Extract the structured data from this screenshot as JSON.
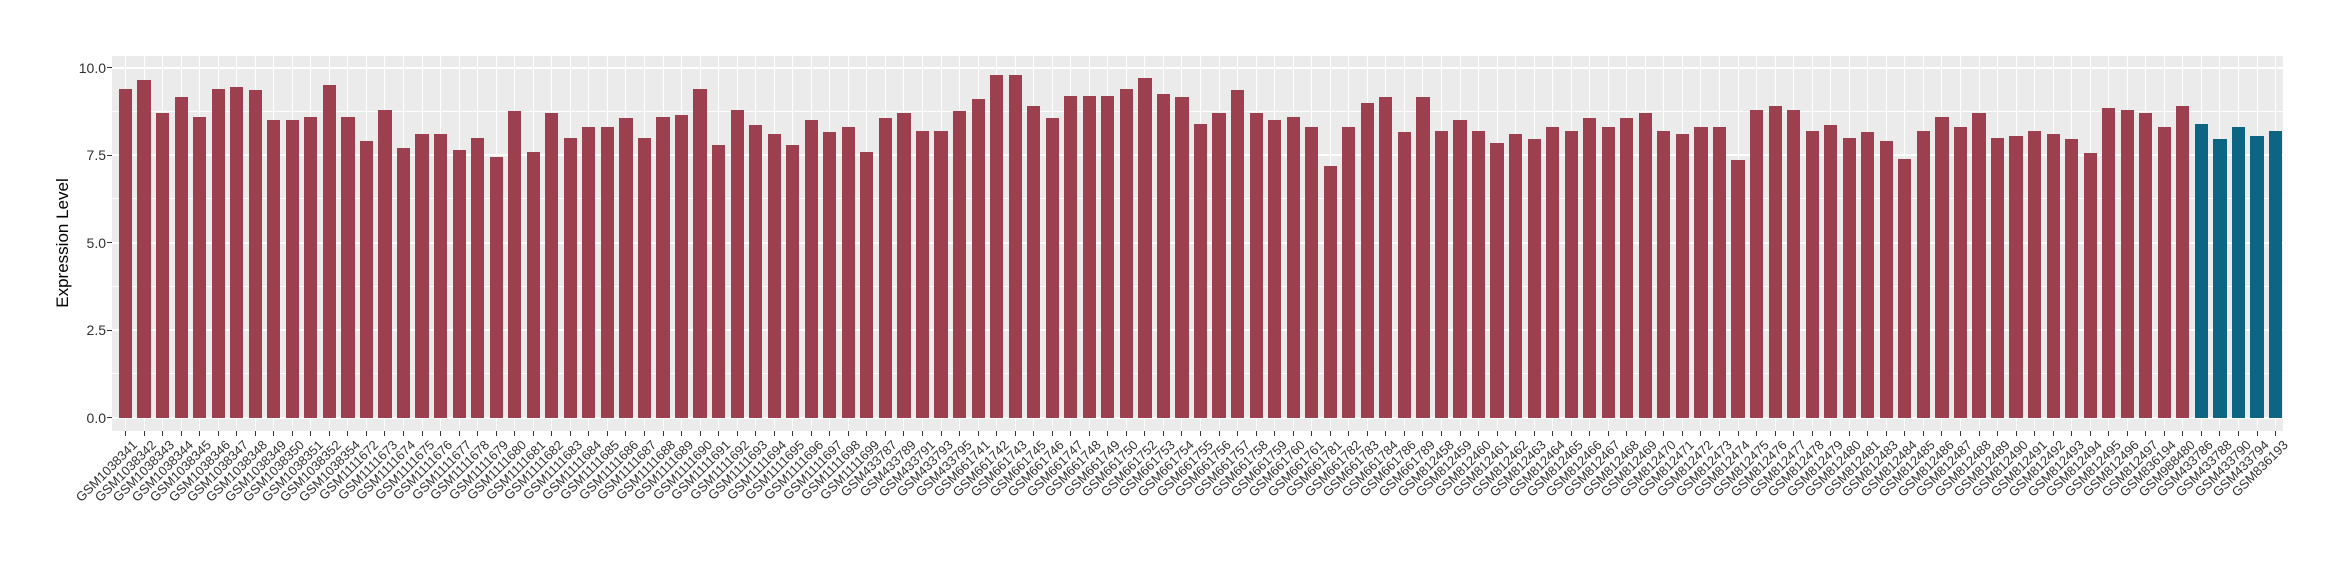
{
  "figure": {
    "background": "#FFFFFF",
    "panel_background": "#EBEBEB",
    "grid_color": "#FFFFFF",
    "axis_text_color": "#303030",
    "axis_title_color": "#000000"
  },
  "chart_data": {
    "type": "bar",
    "title": "",
    "xlabel": "",
    "ylabel": "Expression Level",
    "ylim": [
      0,
      10.35
    ],
    "yticks": [
      "0.0",
      "2.5",
      "5.0",
      "7.5",
      "10.0"
    ],
    "ytick_values": [
      0,
      2.5,
      5,
      7.5,
      10
    ],
    "yminor_values": [
      1.25,
      3.75,
      6.25,
      8.75
    ],
    "grid": true,
    "legend": false,
    "colors": {
      "default": "#9C404F",
      "highlight": "#0D6584"
    },
    "highlight_categories": [
      "GSM433786",
      "GSM433788",
      "GSM433790",
      "GSM433794",
      "GSM836193"
    ],
    "categories": [
      "GSM1038341",
      "GSM1038342",
      "GSM1038343",
      "GSM1038344",
      "GSM1038345",
      "GSM1038346",
      "GSM1038347",
      "GSM1038348",
      "GSM1038349",
      "GSM1038350",
      "GSM1038351",
      "GSM1038352",
      "GSM1038354",
      "GSM1111672",
      "GSM1111673",
      "GSM1111674",
      "GSM1111675",
      "GSM1111676",
      "GSM1111677",
      "GSM1111678",
      "GSM1111679",
      "GSM1111680",
      "GSM1111681",
      "GSM1111682",
      "GSM1111683",
      "GSM1111684",
      "GSM1111685",
      "GSM1111686",
      "GSM1111687",
      "GSM1111688",
      "GSM1111689",
      "GSM1111690",
      "GSM1111691",
      "GSM1111692",
      "GSM1111693",
      "GSM1111694",
      "GSM1111695",
      "GSM1111696",
      "GSM1111697",
      "GSM1111698",
      "GSM1111699",
      "GSM433787",
      "GSM433789",
      "GSM433791",
      "GSM433793",
      "GSM433795",
      "GSM661741",
      "GSM661742",
      "GSM661743",
      "GSM661745",
      "GSM661746",
      "GSM661747",
      "GSM661748",
      "GSM661749",
      "GSM661750",
      "GSM661752",
      "GSM661753",
      "GSM661754",
      "GSM661755",
      "GSM661756",
      "GSM661757",
      "GSM661758",
      "GSM661759",
      "GSM661760",
      "GSM661761",
      "GSM661781",
      "GSM661782",
      "GSM661783",
      "GSM661784",
      "GSM661786",
      "GSM661789",
      "GSM812458",
      "GSM812459",
      "GSM812460",
      "GSM812461",
      "GSM812462",
      "GSM812463",
      "GSM812464",
      "GSM812465",
      "GSM812466",
      "GSM812467",
      "GSM812468",
      "GSM812469",
      "GSM812470",
      "GSM812471",
      "GSM812472",
      "GSM812473",
      "GSM812474",
      "GSM812475",
      "GSM812476",
      "GSM812477",
      "GSM812478",
      "GSM812479",
      "GSM812480",
      "GSM812481",
      "GSM812483",
      "GSM812484",
      "GSM812485",
      "GSM812486",
      "GSM812487",
      "GSM812488",
      "GSM812489",
      "GSM812490",
      "GSM812491",
      "GSM812492",
      "GSM812493",
      "GSM812494",
      "GSM812495",
      "GSM812496",
      "GSM812497",
      "GSM836194",
      "GSM988480",
      "GSM433786",
      "GSM433788",
      "GSM433790",
      "GSM433794",
      "GSM836193"
    ],
    "values": [
      9.4,
      9.65,
      8.7,
      9.15,
      8.6,
      9.4,
      9.45,
      9.35,
      8.5,
      8.5,
      8.6,
      9.5,
      8.6,
      7.9,
      8.8,
      7.7,
      8.1,
      8.1,
      7.65,
      8.0,
      7.45,
      8.75,
      7.6,
      8.7,
      8.0,
      8.3,
      8.3,
      8.55,
      8.0,
      8.6,
      8.65,
      9.4,
      7.8,
      8.8,
      8.35,
      8.1,
      7.8,
      8.5,
      8.15,
      8.3,
      7.6,
      8.55,
      8.7,
      8.2,
      8.2,
      8.75,
      9.1,
      9.8,
      9.8,
      8.9,
      8.55,
      9.2,
      9.2,
      9.2,
      9.4,
      9.7,
      9.25,
      9.15,
      8.4,
      8.7,
      9.35,
      8.7,
      8.5,
      8.6,
      8.3,
      7.2,
      8.3,
      9.0,
      9.15,
      8.15,
      9.15,
      8.2,
      8.5,
      8.2,
      7.85,
      8.1,
      7.95,
      8.3,
      8.2,
      8.55,
      8.3,
      8.55,
      8.7,
      8.2,
      8.1,
      8.3,
      8.3,
      7.35,
      8.8,
      8.9,
      8.8,
      8.2,
      8.35,
      8.0,
      8.15,
      7.9,
      7.4,
      8.2,
      8.6,
      8.3,
      8.7,
      8.0,
      8.05,
      8.2,
      8.1,
      7.95,
      7.55,
      8.85,
      8.8,
      8.7,
      8.3,
      8.9,
      8.4,
      7.95,
      8.3,
      8.05,
      8.2
    ]
  }
}
